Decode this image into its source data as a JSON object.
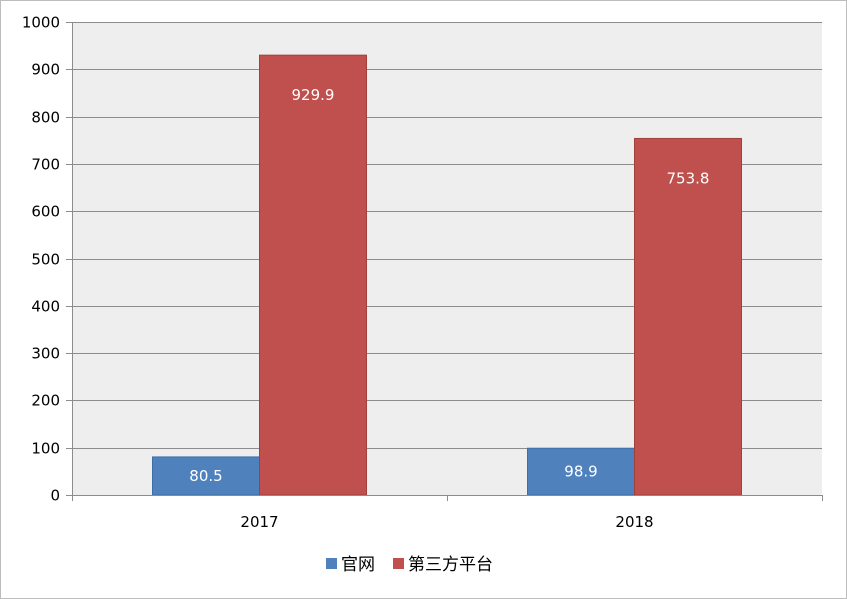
{
  "chart_data": {
    "type": "bar",
    "categories": [
      "2017",
      "2018"
    ],
    "series": [
      {
        "name": "官网",
        "values": [
          80.5,
          98.9
        ],
        "color": "#4f81bd"
      },
      {
        "name": "第三方平台",
        "values": [
          929.9,
          753.8
        ],
        "color": "#c0504d"
      }
    ],
    "ylim": [
      0,
      1000
    ],
    "yticks": [
      0,
      100,
      200,
      300,
      400,
      500,
      600,
      700,
      800,
      900,
      1000
    ],
    "grid": true,
    "plot_background": "#eeeeee",
    "legend_position": "bottom",
    "title": "",
    "xlabel": "",
    "ylabel": ""
  }
}
